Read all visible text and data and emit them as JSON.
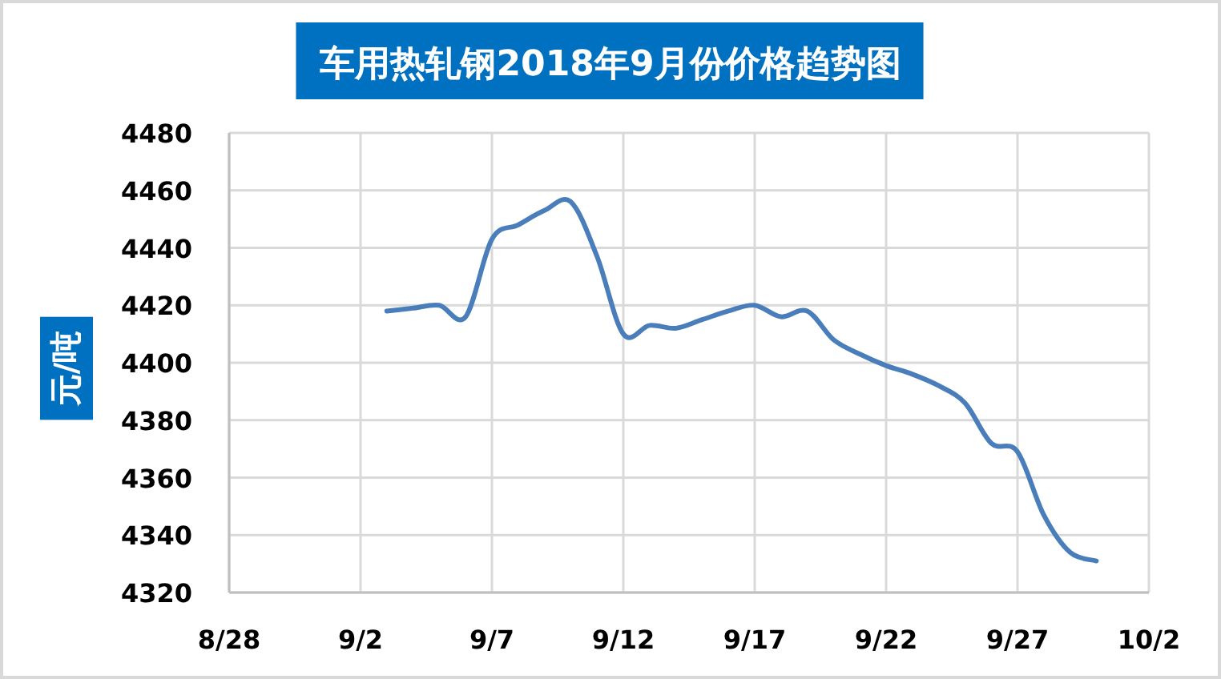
{
  "chart_data": {
    "type": "line",
    "title": "车用热轧钢2018年9月份价格趋势图",
    "ylabel": "元/吨",
    "x": [
      "2018-09-03",
      "2018-09-04",
      "2018-09-05",
      "2018-09-06",
      "2018-09-07",
      "2018-09-08",
      "2018-09-09",
      "2018-09-10",
      "2018-09-11",
      "2018-09-12",
      "2018-09-13",
      "2018-09-14",
      "2018-09-15",
      "2018-09-16",
      "2018-09-17",
      "2018-09-18",
      "2018-09-19",
      "2018-09-20",
      "2018-09-21",
      "2018-09-22",
      "2018-09-23",
      "2018-09-24",
      "2018-09-25",
      "2018-09-26",
      "2018-09-27",
      "2018-09-28",
      "2018-09-29",
      "2018-09-30"
    ],
    "series": [
      {
        "color": "#4a7ebb",
        "values": [
          4418,
          4419,
          4420,
          4416,
          4443,
          4448,
          4453,
          4456,
          4437,
          4410,
          4413,
          4412,
          4415,
          4418,
          4420,
          4416,
          4418,
          4408,
          4403,
          4399,
          4396,
          4392,
          4386,
          4372,
          4369,
          4347,
          4334,
          4331
        ]
      }
    ],
    "xlim": [
      "2018-08-28",
      "2018-10-02"
    ],
    "xticks": [
      {
        "value": "2018-08-28",
        "label": "8/28"
      },
      {
        "value": "2018-09-02",
        "label": "9/2"
      },
      {
        "value": "2018-09-07",
        "label": "9/7"
      },
      {
        "value": "2018-09-12",
        "label": "9/12"
      },
      {
        "value": "2018-09-17",
        "label": "9/17"
      },
      {
        "value": "2018-09-22",
        "label": "9/22"
      },
      {
        "value": "2018-09-27",
        "label": "9/27"
      },
      {
        "value": "2018-10-02",
        "label": "10/2"
      }
    ],
    "ylim": [
      4320,
      4480
    ],
    "yticks": [
      4320,
      4340,
      4360,
      4380,
      4400,
      4420,
      4440,
      4460,
      4480
    ],
    "grid": true,
    "marker": "none",
    "line_style": "solid"
  }
}
